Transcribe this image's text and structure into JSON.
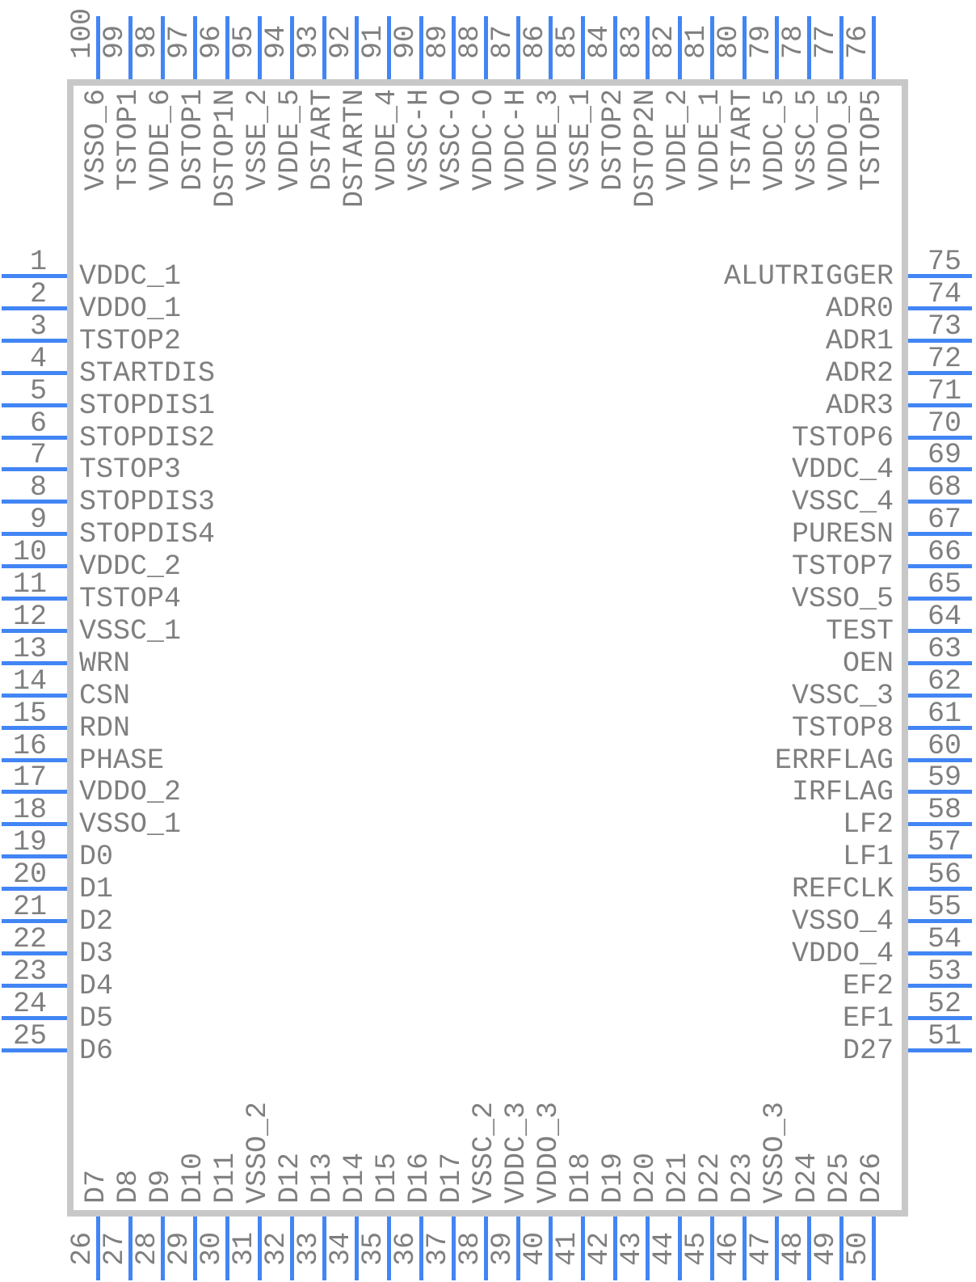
{
  "colors": {
    "pin_line": "#4285f4",
    "text": "#7f7f7f",
    "chip_border": "#c8c8c8",
    "background": "#ffffff"
  },
  "pins": {
    "top": [
      {
        "number": "100",
        "label": "VSSO_6"
      },
      {
        "number": "99",
        "label": "TSTOP1"
      },
      {
        "number": "98",
        "label": "VDDE_6"
      },
      {
        "number": "97",
        "label": "DSTOP1"
      },
      {
        "number": "96",
        "label": "DSTOP1N"
      },
      {
        "number": "95",
        "label": "VSSE_2"
      },
      {
        "number": "94",
        "label": "VDDE_5"
      },
      {
        "number": "93",
        "label": "DSTART"
      },
      {
        "number": "92",
        "label": "DSTARTN"
      },
      {
        "number": "91",
        "label": "VDDE_4"
      },
      {
        "number": "90",
        "label": "VSSC-H"
      },
      {
        "number": "89",
        "label": "VSSC-O"
      },
      {
        "number": "88",
        "label": "VDDC-O"
      },
      {
        "number": "87",
        "label": "VDDC-H"
      },
      {
        "number": "86",
        "label": "VDDE_3"
      },
      {
        "number": "85",
        "label": "VSSE_1"
      },
      {
        "number": "84",
        "label": "DSTOP2"
      },
      {
        "number": "83",
        "label": "DSTOP2N"
      },
      {
        "number": "82",
        "label": "VDDE_2"
      },
      {
        "number": "81",
        "label": "VDDE_1"
      },
      {
        "number": "80",
        "label": "TSTART"
      },
      {
        "number": "79",
        "label": "VDDC_5"
      },
      {
        "number": "78",
        "label": "VSSC_5"
      },
      {
        "number": "77",
        "label": "VDDO_5"
      },
      {
        "number": "76",
        "label": "TSTOP5"
      }
    ],
    "left": [
      {
        "number": "1",
        "label": "VDDC_1"
      },
      {
        "number": "2",
        "label": "VDDO_1"
      },
      {
        "number": "3",
        "label": "TSTOP2"
      },
      {
        "number": "4",
        "label": "STARTDIS"
      },
      {
        "number": "5",
        "label": "STOPDIS1"
      },
      {
        "number": "6",
        "label": "STOPDIS2"
      },
      {
        "number": "7",
        "label": "TSTOP3"
      },
      {
        "number": "8",
        "label": "STOPDIS3"
      },
      {
        "number": "9",
        "label": "STOPDIS4"
      },
      {
        "number": "10",
        "label": "VDDC_2"
      },
      {
        "number": "11",
        "label": "TSTOP4"
      },
      {
        "number": "12",
        "label": "VSSC_1"
      },
      {
        "number": "13",
        "label": "WRN"
      },
      {
        "number": "14",
        "label": "CSN"
      },
      {
        "number": "15",
        "label": "RDN"
      },
      {
        "number": "16",
        "label": "PHASE"
      },
      {
        "number": "17",
        "label": "VDDO_2"
      },
      {
        "number": "18",
        "label": "VSSO_1"
      },
      {
        "number": "19",
        "label": "D0"
      },
      {
        "number": "20",
        "label": "D1"
      },
      {
        "number": "21",
        "label": "D2"
      },
      {
        "number": "22",
        "label": "D3"
      },
      {
        "number": "23",
        "label": "D4"
      },
      {
        "number": "24",
        "label": "D5"
      },
      {
        "number": "25",
        "label": "D6"
      }
    ],
    "right": [
      {
        "number": "75",
        "label": "ALUTRIGGER"
      },
      {
        "number": "74",
        "label": "ADR0"
      },
      {
        "number": "73",
        "label": "ADR1"
      },
      {
        "number": "72",
        "label": "ADR2"
      },
      {
        "number": "71",
        "label": "ADR3"
      },
      {
        "number": "70",
        "label": "TSTOP6"
      },
      {
        "number": "69",
        "label": "VDDC_4"
      },
      {
        "number": "68",
        "label": "VSSC_4"
      },
      {
        "number": "67",
        "label": "PURESN"
      },
      {
        "number": "66",
        "label": "TSTOP7"
      },
      {
        "number": "65",
        "label": "VSSO_5"
      },
      {
        "number": "64",
        "label": "TEST"
      },
      {
        "number": "63",
        "label": "OEN"
      },
      {
        "number": "62",
        "label": "VSSC_3"
      },
      {
        "number": "61",
        "label": "TSTOP8"
      },
      {
        "number": "60",
        "label": "ERRFLAG"
      },
      {
        "number": "59",
        "label": "IRFLAG"
      },
      {
        "number": "58",
        "label": "LF2"
      },
      {
        "number": "57",
        "label": "LF1"
      },
      {
        "number": "56",
        "label": "REFCLK"
      },
      {
        "number": "55",
        "label": "VSSO_4"
      },
      {
        "number": "54",
        "label": "VDDO_4"
      },
      {
        "number": "53",
        "label": "EF2"
      },
      {
        "number": "52",
        "label": "EF1"
      },
      {
        "number": "51",
        "label": "D27"
      }
    ],
    "bottom": [
      {
        "number": "26",
        "label": "D7"
      },
      {
        "number": "27",
        "label": "D8"
      },
      {
        "number": "28",
        "label": "D9"
      },
      {
        "number": "29",
        "label": "D10"
      },
      {
        "number": "30",
        "label": "D11"
      },
      {
        "number": "31",
        "label": "VSSO_2"
      },
      {
        "number": "32",
        "label": "D12"
      },
      {
        "number": "33",
        "label": "D13"
      },
      {
        "number": "34",
        "label": "D14"
      },
      {
        "number": "35",
        "label": "D15"
      },
      {
        "number": "36",
        "label": "D16"
      },
      {
        "number": "37",
        "label": "D17"
      },
      {
        "number": "38",
        "label": "VSSC_2"
      },
      {
        "number": "39",
        "label": "VDDC_3"
      },
      {
        "number": "40",
        "label": "VDDO_3"
      },
      {
        "number": "41",
        "label": "D18"
      },
      {
        "number": "42",
        "label": "D19"
      },
      {
        "number": "43",
        "label": "D20"
      },
      {
        "number": "44",
        "label": "D21"
      },
      {
        "number": "45",
        "label": "D22"
      },
      {
        "number": "46",
        "label": "D23"
      },
      {
        "number": "47",
        "label": "VSSO_3"
      },
      {
        "number": "48",
        "label": "D24"
      },
      {
        "number": "49",
        "label": "D25"
      },
      {
        "number": "50",
        "label": "D26"
      }
    ]
  }
}
